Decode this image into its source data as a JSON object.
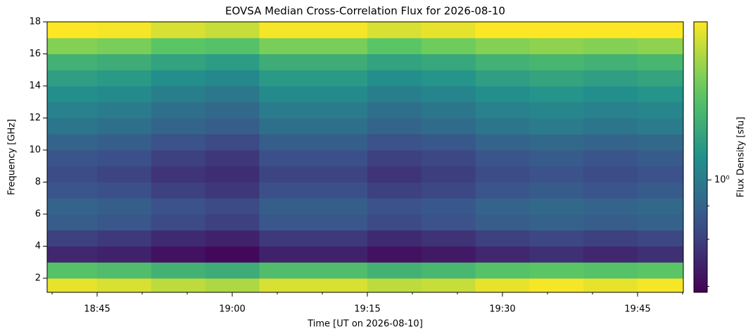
{
  "chart_data": {
    "type": "heatmap",
    "title": "EOVSA Median Cross-Correlation Flux for 2026-08-10",
    "xlabel": "Time [UT on 2026-08-10]",
    "ylabel": "Frequency [GHz]",
    "colorbar_label": "Flux Density [sfu]",
    "colormap": "viridis",
    "color_scale": "log",
    "xlim": [
      "2026-08-10T18:39:27",
      "2026-08-10T19:50:05"
    ],
    "xticks": [
      {
        "value": "2026-08-10T18:45",
        "label": "18:45"
      },
      {
        "value": "2026-08-10T19:00",
        "label": "19:00"
      },
      {
        "value": "2026-08-10T19:15",
        "label": "19:15"
      },
      {
        "value": "2026-08-10T19:30",
        "label": "19:30"
      },
      {
        "value": "2026-08-10T19:45",
        "label": "19:45"
      }
    ],
    "xminorticks": [
      "2026-08-10T18:40",
      "2026-08-10T18:50",
      "2026-08-10T18:55",
      "2026-08-10T19:05",
      "2026-08-10T19:10",
      "2026-08-10T19:20",
      "2026-08-10T19:25",
      "2026-08-10T19:35",
      "2026-08-10T19:40",
      "2026-08-10T19:50"
    ],
    "ylim": [
      1.12,
      18
    ],
    "yticks": [
      2,
      4,
      6,
      8,
      10,
      12,
      14,
      16,
      18
    ],
    "clim": [
      0.38,
      3.9
    ],
    "cticks": [
      {
        "value": 1,
        "label": "10⁰"
      }
    ],
    "cminorticks": [
      0.4,
      0.6,
      0.8
    ],
    "x_edges": [
      "2026-08-10T18:39:27",
      "2026-08-10T18:45",
      "2026-08-10T18:51",
      "2026-08-10T18:57",
      "2026-08-10T19:03",
      "2026-08-10T19:09",
      "2026-08-10T19:15",
      "2026-08-10T19:21",
      "2026-08-10T19:27",
      "2026-08-10T19:33",
      "2026-08-10T19:39",
      "2026-08-10T19:45",
      "2026-08-10T19:50:05"
    ],
    "y_edges": [
      1.12,
      2,
      3,
      4,
      5,
      6,
      7,
      8,
      9,
      10,
      11,
      12,
      13,
      14,
      15,
      16,
      17,
      18
    ],
    "z": [
      [
        3.6,
        3.4,
        3.1,
        2.9,
        3.4,
        3.4,
        3.1,
        3.2,
        3.6,
        3.8,
        3.6,
        3.8
      ],
      [
        2.0,
        1.9,
        1.7,
        1.6,
        1.9,
        1.9,
        1.7,
        1.8,
        2.0,
        2.1,
        2.0,
        2.1
      ],
      [
        0.5,
        0.48,
        0.43,
        0.4,
        0.48,
        0.48,
        0.43,
        0.45,
        0.5,
        0.53,
        0.5,
        0.53
      ],
      [
        0.6,
        0.57,
        0.51,
        0.48,
        0.57,
        0.57,
        0.51,
        0.54,
        0.6,
        0.63,
        0.6,
        0.63
      ],
      [
        0.75,
        0.71,
        0.64,
        0.6,
        0.71,
        0.71,
        0.64,
        0.68,
        0.75,
        0.79,
        0.75,
        0.79
      ],
      [
        0.8,
        0.76,
        0.68,
        0.64,
        0.76,
        0.76,
        0.68,
        0.72,
        0.8,
        0.84,
        0.8,
        0.84
      ],
      [
        0.7,
        0.67,
        0.6,
        0.56,
        0.67,
        0.67,
        0.6,
        0.63,
        0.7,
        0.74,
        0.7,
        0.74
      ],
      [
        0.65,
        0.62,
        0.55,
        0.52,
        0.62,
        0.62,
        0.55,
        0.59,
        0.65,
        0.68,
        0.65,
        0.68
      ],
      [
        0.7,
        0.67,
        0.6,
        0.56,
        0.67,
        0.67,
        0.6,
        0.63,
        0.7,
        0.74,
        0.7,
        0.74
      ],
      [
        0.8,
        0.76,
        0.68,
        0.64,
        0.76,
        0.76,
        0.68,
        0.72,
        0.8,
        0.84,
        0.8,
        0.84
      ],
      [
        0.95,
        0.9,
        0.81,
        0.76,
        0.9,
        0.9,
        0.81,
        0.86,
        0.95,
        1.0,
        0.95,
        1.0
      ],
      [
        1.05,
        1.0,
        0.89,
        0.84,
        1.0,
        1.0,
        0.89,
        0.95,
        1.05,
        1.1,
        1.05,
        1.1
      ],
      [
        1.2,
        1.14,
        1.02,
        0.96,
        1.14,
        1.14,
        1.02,
        1.08,
        1.2,
        1.26,
        1.2,
        1.26
      ],
      [
        1.4,
        1.33,
        1.19,
        1.12,
        1.33,
        1.33,
        1.19,
        1.26,
        1.4,
        1.47,
        1.4,
        1.47
      ],
      [
        1.7,
        1.62,
        1.45,
        1.36,
        1.62,
        1.62,
        1.45,
        1.53,
        1.7,
        1.79,
        1.7,
        1.79
      ],
      [
        2.5,
        2.4,
        2.1,
        2.0,
        2.4,
        2.4,
        2.1,
        2.3,
        2.5,
        2.6,
        2.5,
        2.6
      ],
      [
        4.0,
        3.8,
        3.4,
        3.2,
        3.8,
        3.8,
        3.4,
        3.6,
        4.0,
        4.2,
        4.0,
        4.2
      ]
    ]
  }
}
